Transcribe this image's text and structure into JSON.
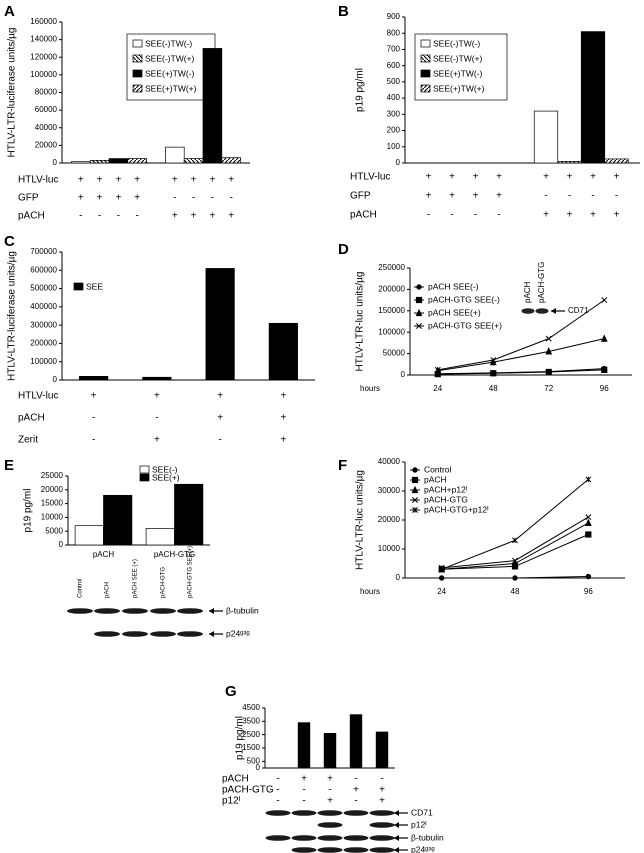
{
  "chart_data": [
    {
      "panel": "A",
      "type": "bar",
      "ylabel": "HTLV-LTR-luciferase units/µg",
      "categories": [
        null,
        null
      ],
      "series": [
        {
          "name": "SEE(-)TW(-)",
          "color": "#ffffff",
          "values": [
            1500,
            18000
          ]
        },
        {
          "name": "SEE(-)TW(+)",
          "color": "#ffffff",
          "hatch": "backslash",
          "values": [
            3000,
            5000
          ]
        },
        {
          "name": "SEE(+)TW(-)",
          "color": "#000000",
          "values": [
            5000,
            130000
          ]
        },
        {
          "name": "SEE(+)TW(+)",
          "color": "#ffffff",
          "hatch": "slash",
          "values": [
            5000,
            6000
          ]
        }
      ],
      "ylim": [
        0,
        160000
      ],
      "yticks": [
        0,
        20000,
        40000,
        60000,
        80000,
        100000,
        120000,
        140000,
        160000
      ],
      "legend": "upper right",
      "conditions": [
        {
          "label": "HTLV-luc",
          "values": [
            "+",
            "+",
            "+",
            "+",
            "+",
            "+",
            "+",
            "+"
          ]
        },
        {
          "label": "GFP",
          "values": [
            "+",
            "+",
            "+",
            "+",
            "-",
            "-",
            "-",
            "-"
          ]
        },
        {
          "label": "pACH",
          "values": [
            "-",
            "-",
            "-",
            "-",
            "+",
            "+",
            "+",
            "+"
          ]
        }
      ]
    },
    {
      "panel": "B",
      "type": "bar",
      "ylabel": "p19 pg/ml",
      "categories": [
        null,
        null
      ],
      "series": [
        {
          "name": "SEE(-)TW(-)",
          "color": "#ffffff",
          "values": [
            0,
            320
          ]
        },
        {
          "name": "SEE(-)TW(+)",
          "color": "#ffffff",
          "hatch": "backslash",
          "values": [
            0,
            10
          ]
        },
        {
          "name": "SEE(+)TW(-)",
          "color": "#000000",
          "values": [
            0,
            810
          ]
        },
        {
          "name": "SEE(+)TW(+)",
          "color": "#ffffff",
          "hatch": "slash",
          "values": [
            0,
            25
          ]
        }
      ],
      "ylim": [
        0,
        900
      ],
      "yticks": [
        0,
        100,
        200,
        300,
        400,
        500,
        600,
        700,
        800,
        900
      ],
      "legend": "upper left",
      "conditions": [
        {
          "label": "HTLV-luc",
          "values": [
            "+",
            "+",
            "+",
            "+",
            "+",
            "+",
            "+",
            "+"
          ]
        },
        {
          "label": "GFP",
          "values": [
            "+",
            "+",
            "+",
            "+",
            "-",
            "-",
            "-",
            "-"
          ]
        },
        {
          "label": "pACH",
          "values": [
            "-",
            "-",
            "-",
            "-",
            "+",
            "+",
            "+",
            "+"
          ]
        }
      ]
    },
    {
      "panel": "C",
      "type": "bar",
      "ylabel": "HTLV-LTR-luciferase units/µg",
      "categories": [
        null,
        null,
        null,
        null
      ],
      "series": [
        {
          "name": "SEE",
          "color": "#000000",
          "values": [
            20000,
            15000,
            610000,
            310000
          ]
        }
      ],
      "ylim": [
        0,
        700000
      ],
      "yticks": [
        0,
        100000,
        200000,
        300000,
        400000,
        500000,
        600000,
        700000
      ],
      "legend": "upper left",
      "conditions": [
        {
          "label": "HTLV-luc",
          "values": [
            "+",
            "+",
            "+",
            "+"
          ]
        },
        {
          "label": "pACH",
          "values": [
            "-",
            "-",
            "+",
            "+"
          ]
        },
        {
          "label": "Zerit",
          "values": [
            "-",
            "+",
            "-",
            "+"
          ]
        }
      ]
    },
    {
      "panel": "D",
      "type": "line",
      "ylabel": "HTLV-LTR-luc units/µg",
      "x_label": "hours",
      "categories": [
        "24",
        "48",
        "72",
        "96"
      ],
      "series": [
        {
          "name": "pACH SEE(-)",
          "color": "#000000",
          "marker": "circle",
          "values": [
            3000,
            5000,
            8000,
            15000
          ]
        },
        {
          "name": "pACH-GTG SEE(-)",
          "color": "#000000",
          "marker": "square",
          "values": [
            2000,
            4000,
            7000,
            12000
          ]
        },
        {
          "name": "pACH SEE(+)",
          "color": "#000000",
          "marker": "triangle",
          "values": [
            10000,
            30000,
            55000,
            85000
          ]
        },
        {
          "name": "pACH-GTG SEE(+)",
          "color": "#000000",
          "marker": "x",
          "values": [
            12000,
            35000,
            85000,
            175000
          ]
        }
      ],
      "ylim": [
        0,
        250000
      ],
      "yticks": [
        0,
        50000,
        100000,
        150000,
        200000,
        250000
      ],
      "legend": "upper left",
      "inset_lanes": [
        "pACH",
        "pACH-GTG"
      ],
      "inset_label": "CD71"
    },
    {
      "panel": "E",
      "type": "bar",
      "ylabel": "p19 pg/ml",
      "categories": [
        "pACH",
        "pACH-GTG"
      ],
      "series": [
        {
          "name": "SEE(-)",
          "color": "#ffffff",
          "values": [
            7000,
            6000
          ]
        },
        {
          "name": "SEE(+)",
          "color": "#000000",
          "values": [
            18000,
            22000
          ]
        }
      ],
      "ylim": [
        0,
        25000
      ],
      "yticks": [
        0,
        5000,
        10000,
        15000,
        20000,
        25000
      ],
      "legend": "upper right",
      "blot_lanes": [
        "Control",
        "pACH",
        "pACH SEE (+)",
        "pACH-GTG",
        "pACH-GTG SEE(+)"
      ],
      "blots": [
        "β-tubulin",
        "p24ᵍᵃᵍ"
      ]
    },
    {
      "panel": "F",
      "type": "line",
      "ylabel": "HTLV-LTR-luc units/µg",
      "x_label": "hours",
      "categories": [
        "24",
        "48",
        "96"
      ],
      "series": [
        {
          "name": "Control",
          "color": "#000000",
          "marker": "circle",
          "values": [
            0,
            0,
            500
          ]
        },
        {
          "name": "pACH",
          "color": "#000000",
          "marker": "square",
          "values": [
            3000,
            4000,
            15000
          ]
        },
        {
          "name": "pACH+p12ᴵ",
          "color": "#000000",
          "marker": "triangle",
          "values": [
            3000,
            5000,
            19000
          ]
        },
        {
          "name": "pACH-GTG",
          "color": "#000000",
          "marker": "x",
          "values": [
            3500,
            6000,
            21000
          ]
        },
        {
          "name": "pACH-GTG+p12ᴵ",
          "color": "#000000",
          "marker": "star",
          "values": [
            3000,
            13000,
            34000
          ]
        }
      ],
      "ylim": [
        0,
        40000
      ],
      "yticks": [
        0,
        10000,
        20000,
        30000,
        40000
      ],
      "legend": "upper left"
    },
    {
      "panel": "G",
      "type": "bar",
      "ylabel": "p19 pg/ml",
      "categories": [
        null,
        null,
        null,
        null,
        null
      ],
      "series": [
        {
          "color": "#000000",
          "values": [
            0,
            3400,
            2600,
            4000,
            2700
          ]
        }
      ],
      "ylim": [
        0,
        4500
      ],
      "yticks": [
        0,
        500,
        1500,
        2500,
        3500,
        4500
      ],
      "conditions": [
        {
          "label": "pACH",
          "values": [
            "-",
            "+",
            "+",
            "-",
            "-"
          ]
        },
        {
          "label": "pACH-GTG",
          "values": [
            "-",
            "-",
            "-",
            "+",
            "+"
          ]
        },
        {
          "label": "p12ᴵ",
          "values": [
            "-",
            "-",
            "+",
            "-",
            "+"
          ]
        }
      ],
      "blots": [
        "CD71",
        "p12ᴵ",
        "β-tubulin",
        "p24ᵍᵃᵍ"
      ]
    }
  ]
}
